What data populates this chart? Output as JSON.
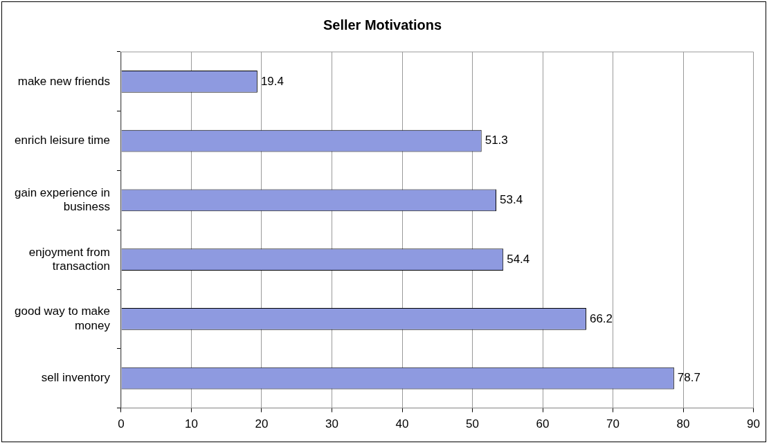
{
  "chart_data": {
    "type": "bar",
    "orientation": "horizontal",
    "title": "Seller Motivations",
    "categories": [
      "make new friends",
      "enrich leisure time",
      "gain experience in business",
      "enjoyment from transaction",
      "good way to make money",
      "sell inventory"
    ],
    "values": [
      19.4,
      51.3,
      53.4,
      54.4,
      66.2,
      78.7
    ],
    "color": "#8e9ae0",
    "xlim": [
      0,
      90
    ],
    "xticks": [
      0,
      10,
      20,
      30,
      40,
      50,
      60,
      70,
      80,
      90
    ],
    "grid": "x",
    "data_labels": true,
    "legend": false
  }
}
